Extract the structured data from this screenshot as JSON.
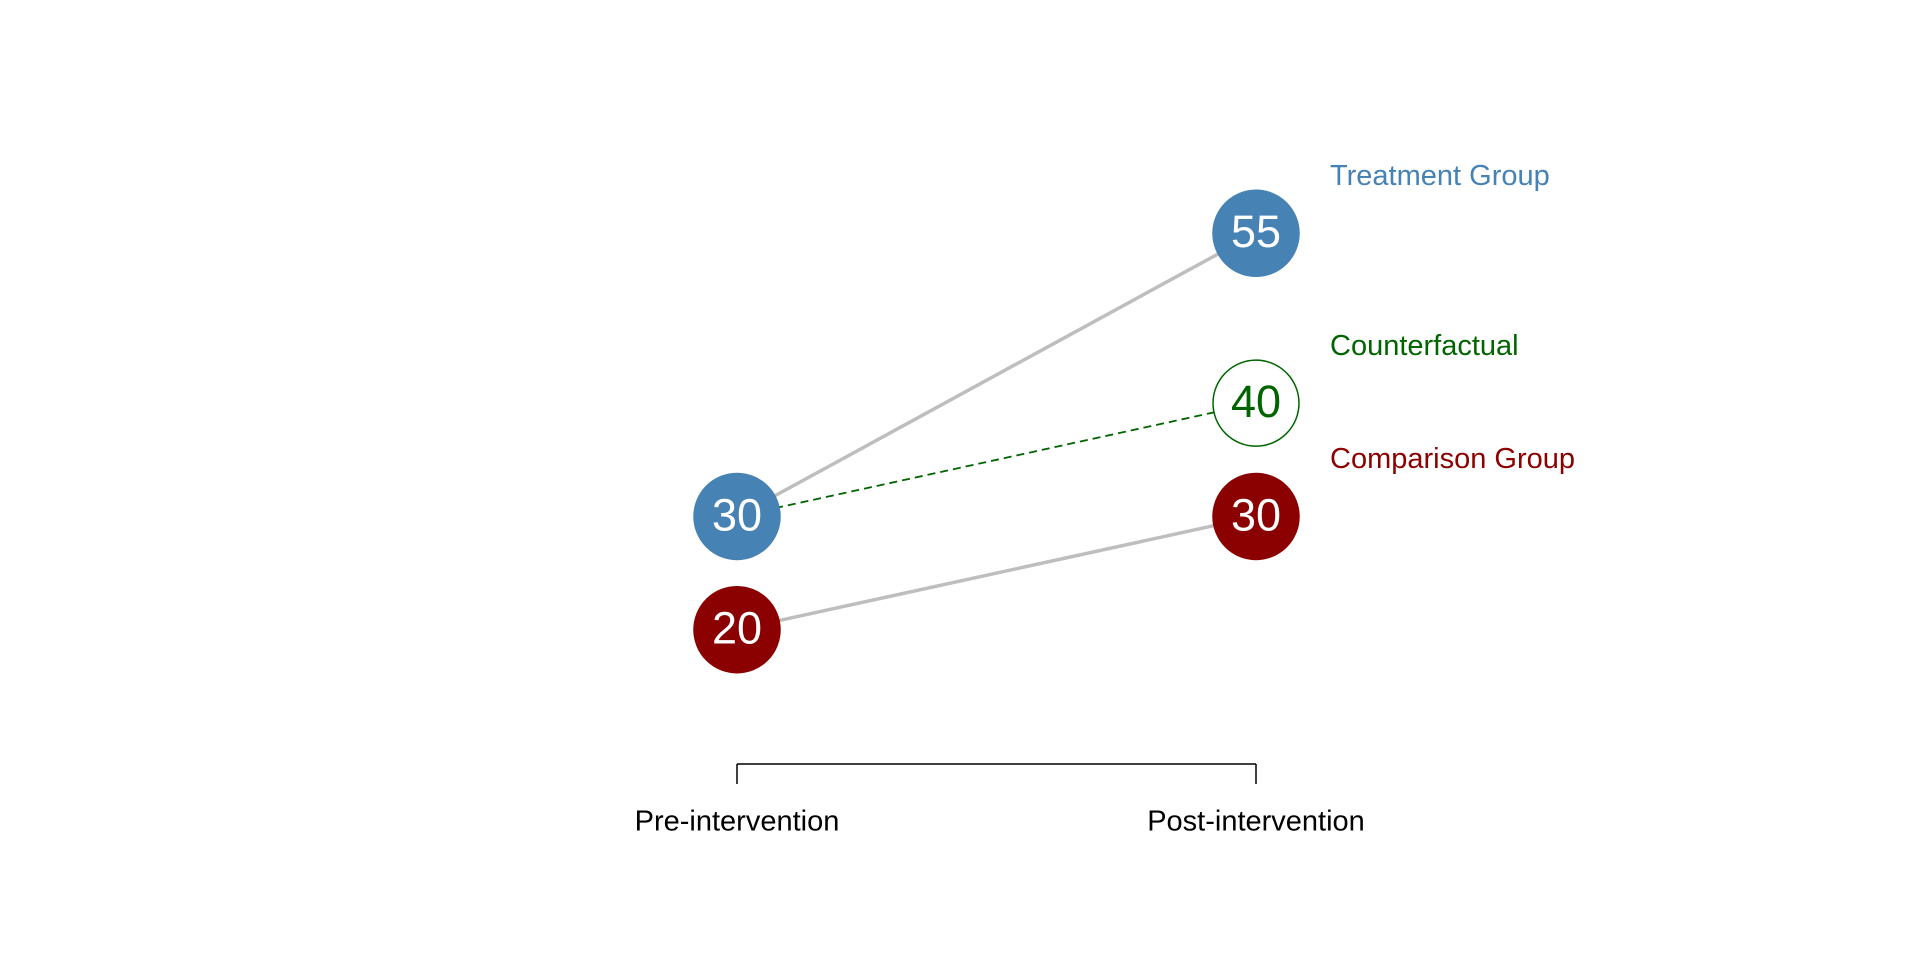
{
  "chart_data": {
    "type": "slope",
    "categories": [
      "Pre-intervention",
      "Post-intervention"
    ],
    "ylim": [
      10,
      65
    ],
    "series": [
      {
        "name": "Treatment Group",
        "color": "#4682b4",
        "values": [
          30,
          55
        ]
      },
      {
        "name": "Counterfactual",
        "color": "#006400",
        "values": [
          30,
          40
        ],
        "dashed": true,
        "points": [
          false,
          true
        ],
        "open": true
      },
      {
        "name": "Comparison Group",
        "color": "#8b0000",
        "values": [
          20,
          30
        ]
      }
    ]
  }
}
